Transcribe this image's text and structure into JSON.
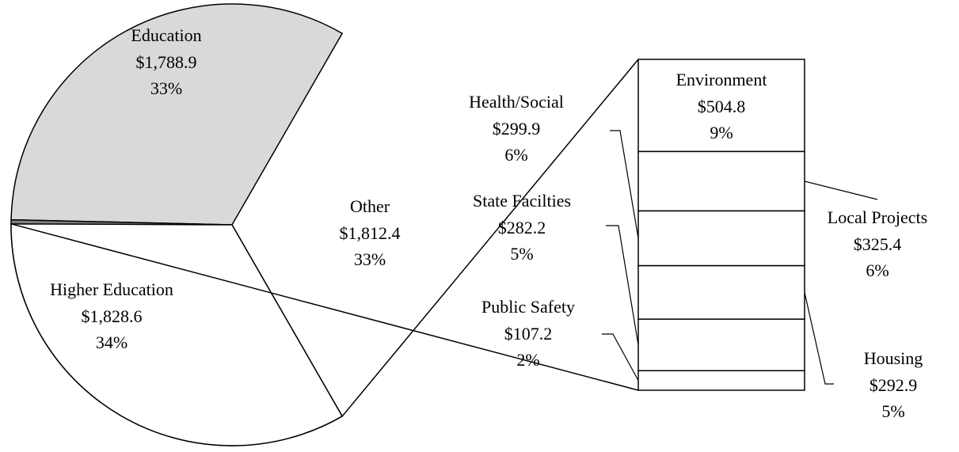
{
  "chart_data": {
    "type": "pie-of-bar",
    "categories": [
      "Education",
      "Higher Education",
      "Other"
    ],
    "values": [
      1788.9,
      1828.6,
      1812.4
    ],
    "value_labels": [
      "$1,788.9",
      "$1,828.6",
      "$1,812.4"
    ],
    "percent_labels": [
      "33%",
      "34%",
      "33%"
    ],
    "colors": [
      "#d9d9d9",
      "#808080",
      "#ffffff"
    ],
    "breakdown": {
      "categories": [
        "Environment",
        "Local Projects",
        "Health/Social",
        "Housing",
        "State Facilties",
        "Public Safety"
      ],
      "values": [
        504.8,
        325.4,
        299.9,
        292.9,
        282.2,
        107.2
      ],
      "value_labels": [
        "$504.8",
        "$325.4",
        "$299.9",
        "$292.9",
        "$282.2",
        "$107.2"
      ],
      "percent_labels": [
        "9%",
        "6%",
        "6%",
        "5%",
        "5%",
        "2%"
      ],
      "color": "#ffffff"
    }
  }
}
